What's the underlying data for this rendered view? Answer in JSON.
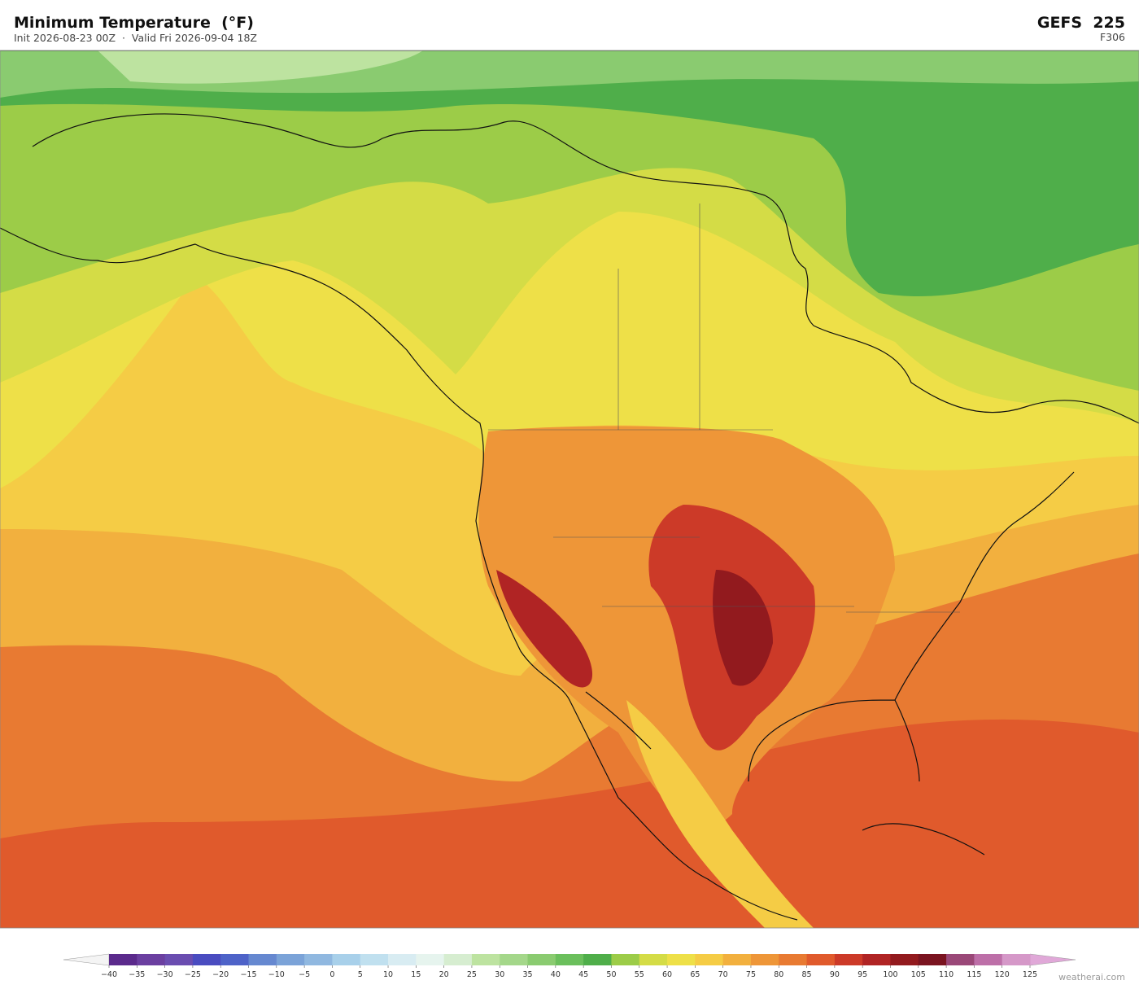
{
  "header": {
    "title": "Minimum Temperature  (°F)",
    "subtitle": "Init 2026-08-23 00Z  ·  Valid Fri 2026-09-04 18Z",
    "model": "GEFS  225",
    "forecast_hour": "F306"
  },
  "colorbar": {
    "ticks": [
      "−40",
      "−35",
      "−30",
      "−25",
      "−20",
      "−15",
      "−10",
      "−5",
      "0",
      "5",
      "10",
      "15",
      "20",
      "25",
      "30",
      "35",
      "40",
      "45",
      "50",
      "55",
      "60",
      "65",
      "70",
      "75",
      "80",
      "85",
      "90",
      "95",
      "100",
      "105",
      "110",
      "115",
      "120",
      "125"
    ],
    "colors": [
      "#5b2a8c",
      "#6b3fa0",
      "#6a4db0",
      "#4a4cc0",
      "#4e63c8",
      "#6688d0",
      "#7ba3d8",
      "#90b8e0",
      "#a8d0ea",
      "#c0e0ef",
      "#d8ecf2",
      "#e6f4ee",
      "#d6edd0",
      "#bde3a0",
      "#a4d78a",
      "#8acb70",
      "#6bbf5c",
      "#4fae4a",
      "#9ccc48",
      "#d4dc46",
      "#eee048",
      "#f5cc45",
      "#f2b03e",
      "#ee9638",
      "#e87a32",
      "#e05a2c",
      "#cc3a28",
      "#b02424",
      "#921a1e",
      "#7a1420",
      "#9a4878",
      "#bd6fa8",
      "#d598c8"
    ],
    "under_color": "#f4f4f4",
    "over_color": "#e0a8d8"
  },
  "watermark": "weatherai.com"
}
